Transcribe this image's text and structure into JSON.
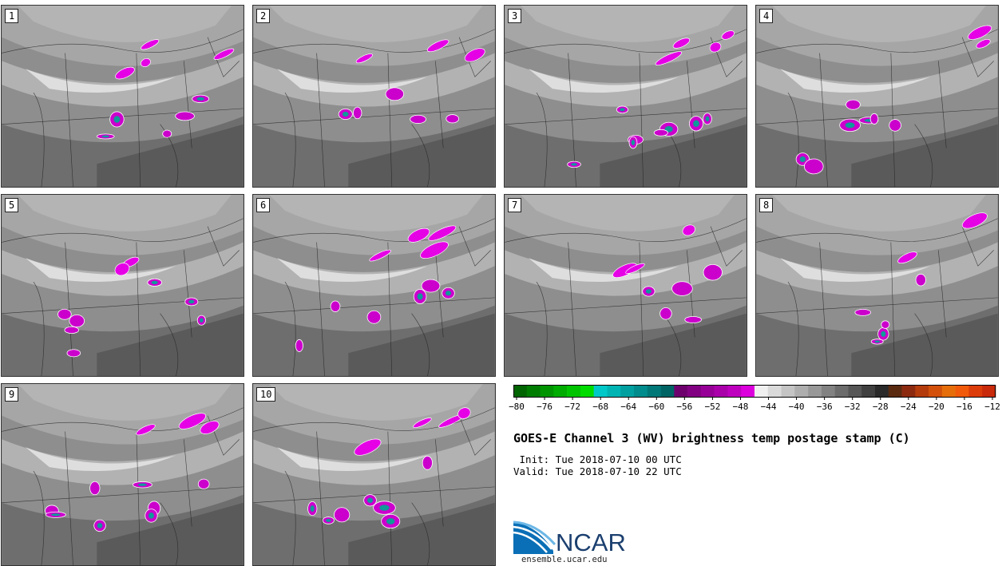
{
  "panels": [
    {
      "label": "1"
    },
    {
      "label": "2"
    },
    {
      "label": "3"
    },
    {
      "label": "4"
    },
    {
      "label": "5"
    },
    {
      "label": "6"
    },
    {
      "label": "7"
    },
    {
      "label": "8"
    },
    {
      "label": "9"
    },
    {
      "label": "10"
    }
  ],
  "colorbar": {
    "min": -80,
    "max": -12,
    "step": 2,
    "tick_labels": [
      "-80",
      "-76",
      "-72",
      "-68",
      "-64",
      "-60",
      "-56",
      "-52",
      "-48",
      "-44",
      "-40",
      "-36",
      "-32",
      "-28",
      "-24",
      "-20",
      "-16",
      "-12"
    ],
    "colors": [
      "#006400",
      "#007c00",
      "#009400",
      "#00ac00",
      "#00c400",
      "#00dc00",
      "#00c8c8",
      "#00b4b4",
      "#00a0a0",
      "#008c8c",
      "#007878",
      "#006464",
      "#6e006e",
      "#820082",
      "#960096",
      "#aa00aa",
      "#be00be",
      "#dc00dc",
      "#f0f0f0",
      "#dadada",
      "#c4c4c4",
      "#aeaeae",
      "#989898",
      "#828282",
      "#6c6c6c",
      "#565656",
      "#404040",
      "#2a2a2a",
      "#5a2a10",
      "#8c2a10",
      "#b43c0c",
      "#d2500a",
      "#e66e0a",
      "#f05a0a",
      "#dc3c0a",
      "#c82a0a"
    ]
  },
  "title": "GOES-E Channel 3 (WV) brightness temp postage stamp (C)",
  "init_line": " Init: Tue 2018-07-10 00 UTC",
  "valid_line": "Valid: Tue 2018-07-10 22 UTC",
  "logo_text": "NCAR",
  "site": "ensemble.ucar.edu",
  "colors": {
    "magenta": "#cc00cc",
    "teal": "#109a9a",
    "bright_magenta": "#e600e6"
  }
}
